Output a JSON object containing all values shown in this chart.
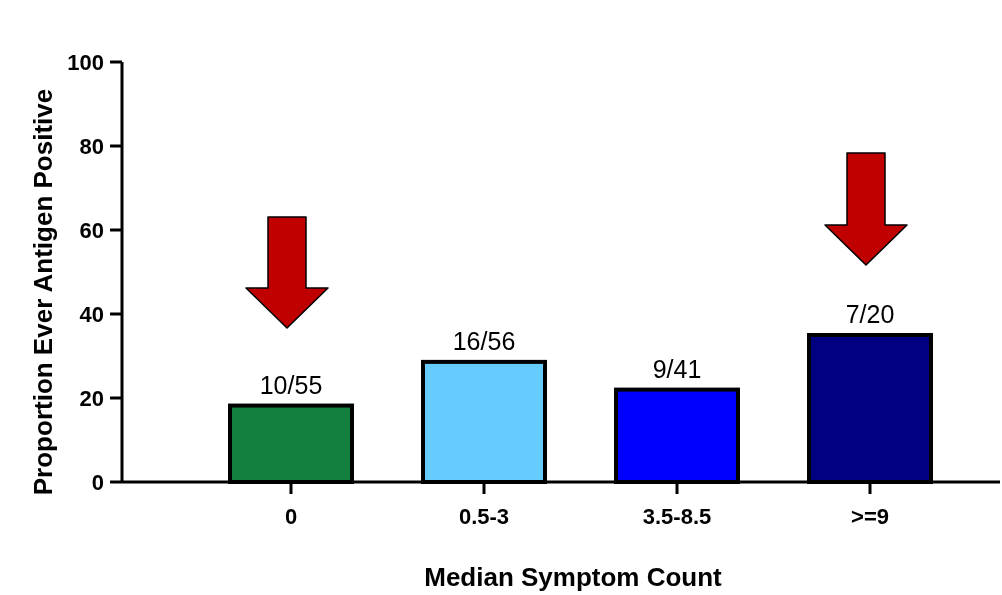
{
  "chart_data": {
    "type": "bar",
    "xlabel": "Median Symptom Count",
    "ylabel": "Proportion Ever Antigen Positive",
    "categories": [
      "0",
      "0.5-3",
      "3.5-8.5",
      ">=9"
    ],
    "values": [
      18.2,
      28.6,
      22.0,
      35.0
    ],
    "colors": [
      "#13803f",
      "#66ccff",
      "#0000ff",
      "#000080"
    ],
    "value_labels": [
      "10/55",
      "16/56",
      "9/41",
      "7/20"
    ],
    "ylim": [
      0,
      100
    ],
    "yticks": [
      0,
      20,
      40,
      60,
      80,
      100
    ],
    "grid": false
  }
}
